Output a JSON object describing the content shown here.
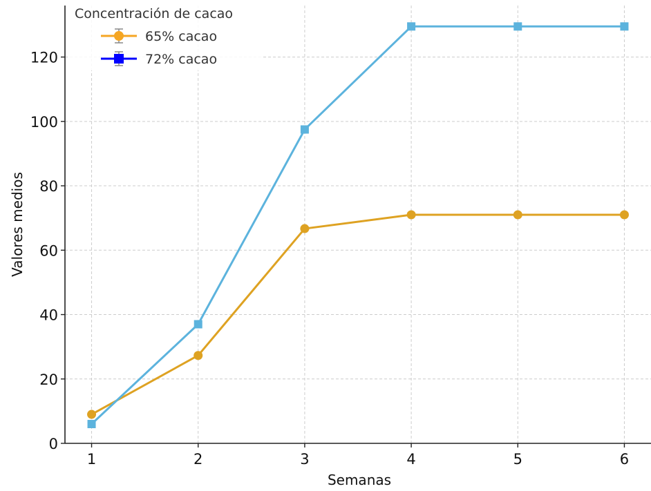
{
  "chart_data": {
    "type": "line",
    "title": "",
    "xlabel": "Semanas",
    "ylabel": "Valores medios",
    "x": [
      1,
      2,
      3,
      4,
      5,
      6
    ],
    "xlim": [
      0.75,
      6.25
    ],
    "ylim": [
      0,
      136
    ],
    "yticks": [
      0,
      20,
      40,
      60,
      80,
      100,
      120
    ],
    "xticks": [
      1,
      2,
      3,
      4,
      5,
      6
    ],
    "grid": true,
    "legend": {
      "title": "Concentración de cacao",
      "placement": "top-left",
      "entries": [
        "65% cacao",
        "72% cacao"
      ],
      "marker_colors": [
        "#f5a623",
        "#0000ff"
      ]
    },
    "series": [
      {
        "name": "65% cacao",
        "values": [
          9,
          27.3,
          66.7,
          71,
          71,
          71
        ],
        "color": "#dea222",
        "marker": "circle"
      },
      {
        "name": "72% cacao",
        "values": [
          6,
          37,
          97.5,
          129.5,
          129.5,
          129.5
        ],
        "color": "#5cb3dd",
        "marker": "square"
      }
    ]
  }
}
